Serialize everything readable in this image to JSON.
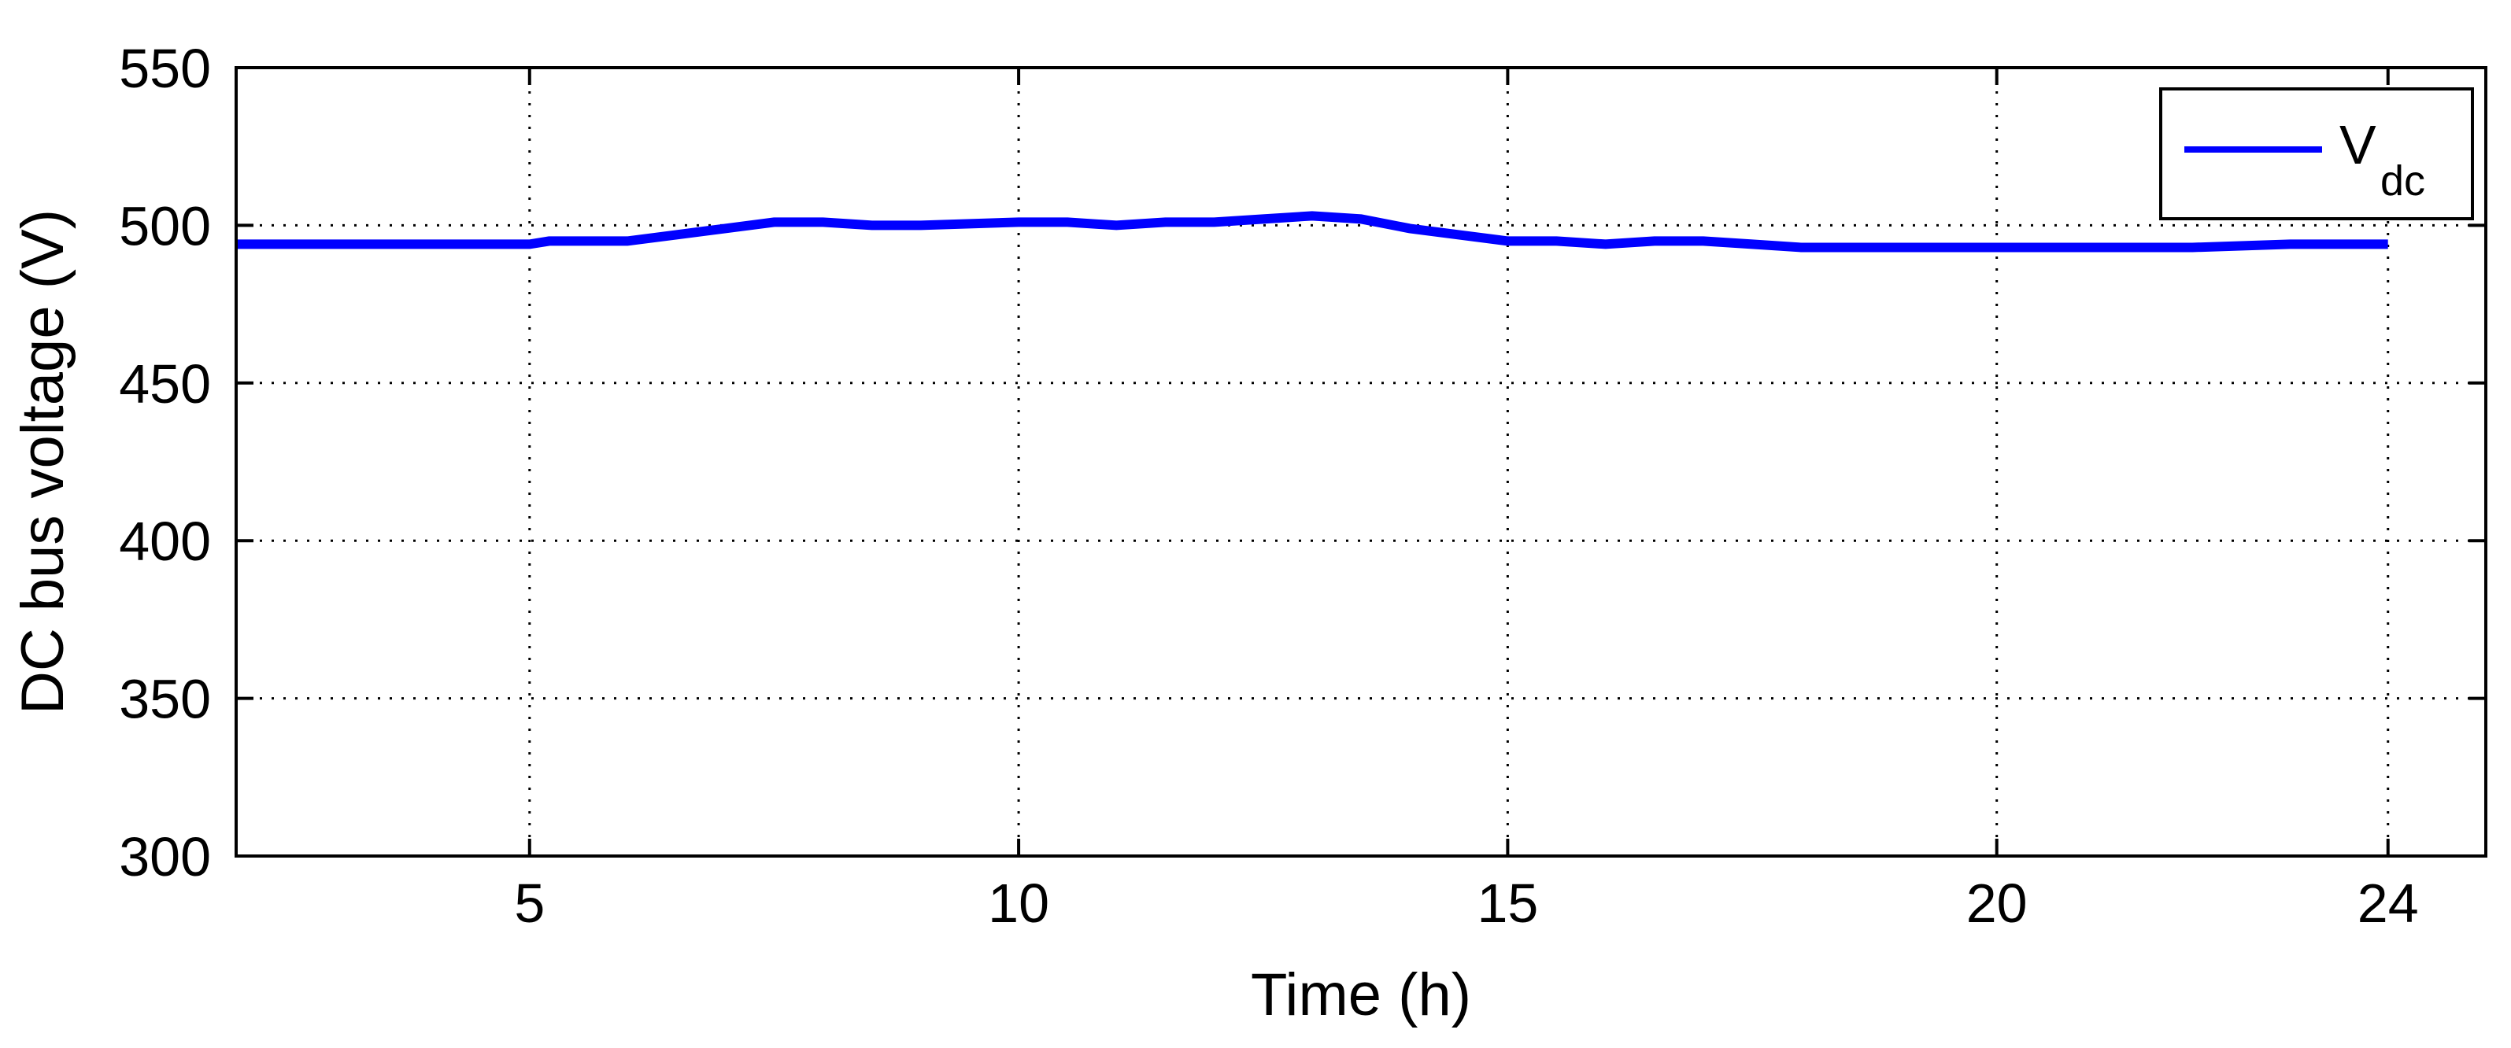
{
  "chart_data": {
    "type": "line",
    "title": "",
    "xlabel": "Time (h)",
    "ylabel": "DC bus voltage  (V)",
    "xlim": [
      2,
      25
    ],
    "ylim": [
      300,
      550
    ],
    "x_ticks": [
      5,
      10,
      15,
      20,
      24
    ],
    "y_ticks": [
      300,
      350,
      400,
      450,
      500,
      550
    ],
    "grid": true,
    "legend": {
      "position": "top-right",
      "entries": [
        {
          "main": "V",
          "subscript": "dc"
        }
      ]
    },
    "series": [
      {
        "name": "Vdc",
        "color": "#0000ff",
        "x": [
          2,
          4,
          5,
          5.2,
          6,
          6.5,
          7,
          7.5,
          8,
          8.5,
          9,
          10,
          10.5,
          11,
          11.5,
          12,
          12.5,
          13,
          13.5,
          14,
          14.5,
          15,
          15.5,
          16,
          16.5,
          17,
          17.5,
          18,
          19,
          20,
          21,
          22,
          23,
          24
        ],
        "y": [
          494,
          494,
          494,
          495,
          495,
          497,
          499,
          501,
          501,
          500,
          500,
          501,
          501,
          500,
          501,
          501,
          502,
          503,
          502,
          499,
          497,
          495,
          495,
          494,
          495,
          495,
          494,
          493,
          493,
          493,
          493,
          493,
          494,
          494
        ]
      }
    ]
  }
}
